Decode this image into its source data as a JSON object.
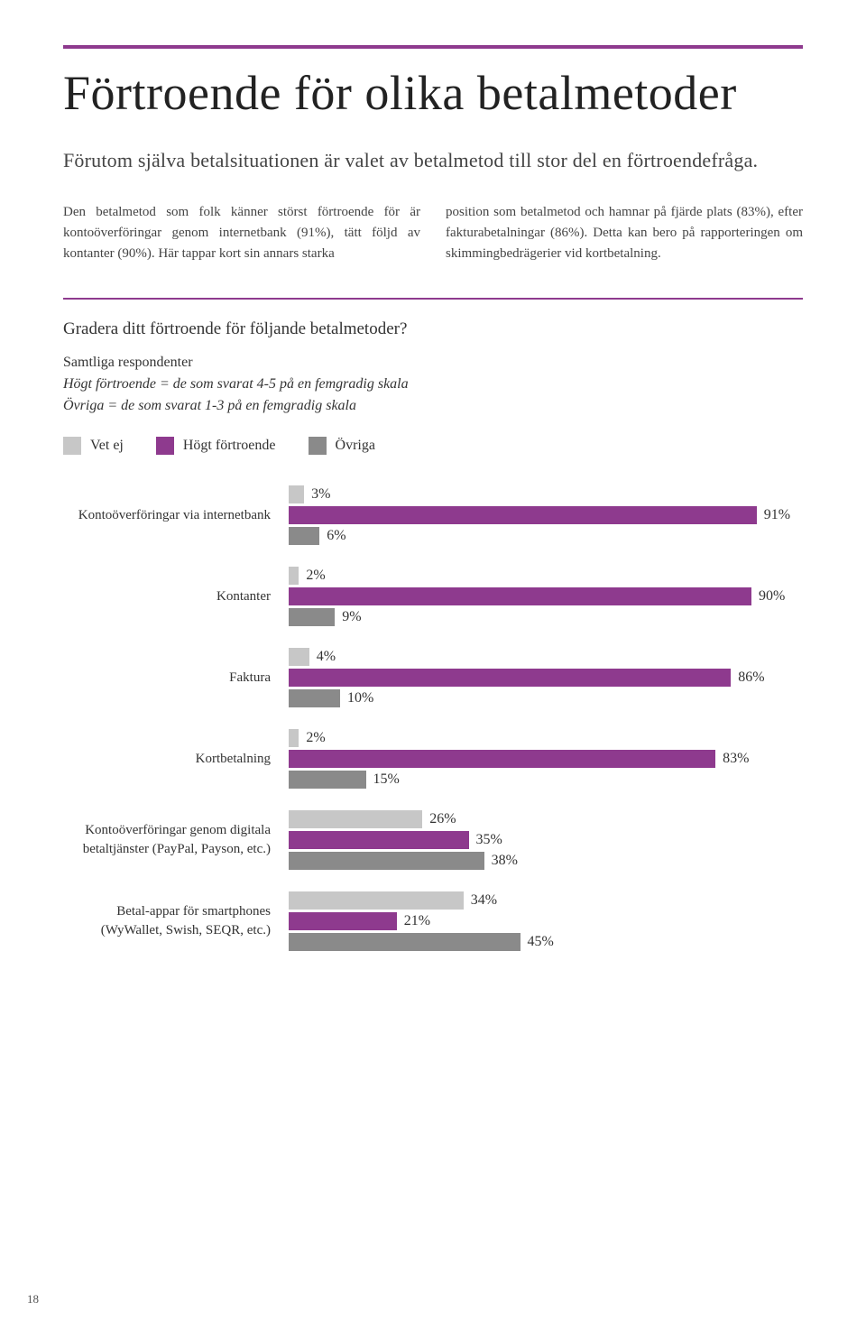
{
  "colors": {
    "accent": "#8e3a8e",
    "vet_ej": "#c7c7c7",
    "hogt": "#8e3a8e",
    "ovriga": "#8a8a8a",
    "text": "#333333"
  },
  "title": "Förtroende för olika betalmetoder",
  "intro": "Förutom själva betalsituationen är valet av betalmetod till stor del en förtroendefråga.",
  "body_left": "Den betalmetod som folk känner störst förtroende för är kontoöverföringar genom internetbank (91%), tätt följd av kontanter (90%). Här tappar kort sin annars starka",
  "body_right": "position som betalmetod och hamnar på fjärde plats (83%), efter fakturabetalningar (86%). Detta kan bero på rapporteringen om skimmingbedrägerier vid kortbetalning.",
  "question": "Gradera ditt förtroende för följande betalmetoder?",
  "sub_line1": "Samtliga respondenter",
  "sub_line2": "Högt förtroende = de som svarat 4-5 på en femgradig skala",
  "sub_line3": "Övriga = de som svarat 1-3 på en femgradig skala",
  "legend": {
    "vet_ej": "Vet ej",
    "hogt": "Högt förtroende",
    "ovriga": "Övriga"
  },
  "chart": {
    "max": 100,
    "rows": [
      {
        "label": "Kontoöverföringar via internetbank",
        "vet_ej": 3,
        "hogt": 91,
        "ovriga": 6
      },
      {
        "label": "Kontanter",
        "vet_ej": 2,
        "hogt": 90,
        "ovriga": 9
      },
      {
        "label": "Faktura",
        "vet_ej": 4,
        "hogt": 86,
        "ovriga": 10
      },
      {
        "label": "Kortbetalning",
        "vet_ej": 2,
        "hogt": 83,
        "ovriga": 15
      },
      {
        "label": "Kontoöverföringar genom digitala betaltjänster (PayPal, Payson, etc.)",
        "vet_ej": 26,
        "hogt": 35,
        "ovriga": 38
      },
      {
        "label": "Betal-appar för smartphones (WyWallet, Swish, SEQR, etc.)",
        "vet_ej": 34,
        "hogt": 21,
        "ovriga": 45
      }
    ]
  },
  "page_number": "18"
}
